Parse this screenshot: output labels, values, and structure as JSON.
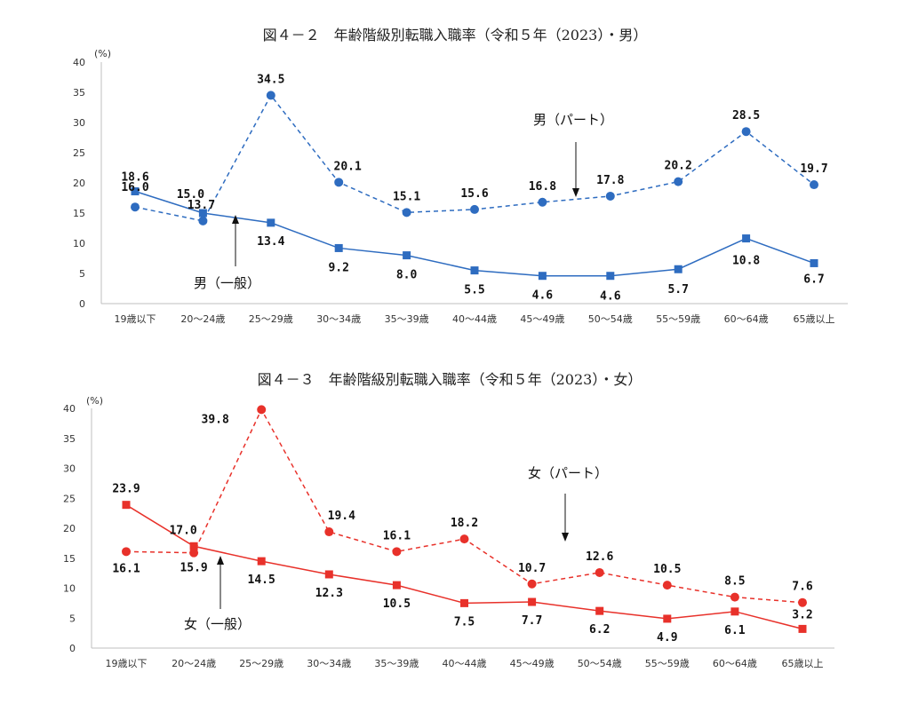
{
  "chart_data": [
    {
      "type": "line",
      "title": "図４－２　年齢階級別転職入職率（令和５年（2023）・男）",
      "ylabel_unit": "(%)",
      "ylim": [
        0,
        40
      ],
      "yticks": [
        0,
        5,
        10,
        15,
        20,
        25,
        30,
        35,
        40
      ],
      "categories": [
        "19歳以下",
        "20～24歳",
        "25～29歳",
        "30～34歳",
        "35～39歳",
        "40～44歳",
        "45～49歳",
        "50～54歳",
        "55～59歳",
        "60～64歳",
        "65歳以上"
      ],
      "color": "#2e6cc0",
      "series": [
        {
          "name": "男（パート）",
          "style": "dashed",
          "marker": "circle",
          "values": [
            16.0,
            13.7,
            34.5,
            20.1,
            15.1,
            15.6,
            16.8,
            17.8,
            20.2,
            28.5,
            19.7
          ],
          "labels": [
            "16.0",
            "13.7",
            "34.5",
            "20.1",
            "15.1",
            "15.6",
            "16.8",
            "17.8",
            "20.2",
            "28.5",
            "19.7"
          ]
        },
        {
          "name": "男（一般）",
          "style": "solid",
          "marker": "square",
          "values": [
            18.6,
            15.0,
            13.4,
            9.2,
            8.0,
            5.5,
            4.6,
            4.6,
            5.7,
            10.8,
            6.7
          ],
          "labels": [
            "18.6",
            "15.0",
            "13.4",
            "9.2",
            "8.0",
            "5.5",
            "4.6",
            "4.6",
            "5.7",
            "10.8",
            "6.7"
          ]
        }
      ],
      "annotations": [
        "男（パート）",
        "男（一般）"
      ]
    },
    {
      "type": "line",
      "title": "図４－３　年齢階級別転職入職率（令和５年（2023）・女）",
      "ylabel_unit": "(%)",
      "ylim": [
        0,
        40
      ],
      "yticks": [
        0,
        5,
        10,
        15,
        20,
        25,
        30,
        35,
        40
      ],
      "categories": [
        "19歳以下",
        "20～24歳",
        "25～29歳",
        "30～34歳",
        "35～39歳",
        "40～44歳",
        "45～49歳",
        "50～54歳",
        "55～59歳",
        "60～64歳",
        "65歳以上"
      ],
      "color": "#e8312a",
      "series": [
        {
          "name": "女（パート）",
          "style": "dashed",
          "marker": "circle",
          "values": [
            16.1,
            15.9,
            39.8,
            19.4,
            16.1,
            18.2,
            10.7,
            12.6,
            10.5,
            8.5,
            7.6
          ],
          "labels": [
            "16.1",
            "15.9",
            "39.8",
            "19.4",
            "16.1",
            "18.2",
            "10.7",
            "12.6",
            "10.5",
            "8.5",
            "7.6"
          ]
        },
        {
          "name": "女（一般）",
          "style": "solid",
          "marker": "square",
          "values": [
            23.9,
            17.0,
            14.5,
            12.3,
            10.5,
            7.5,
            7.7,
            6.2,
            4.9,
            6.1,
            3.2
          ],
          "labels": [
            "23.9",
            "17.0",
            "14.5",
            "12.3",
            "10.5",
            "7.5",
            "7.7",
            "6.2",
            "4.9",
            "6.1",
            "3.2"
          ]
        }
      ],
      "annotations": [
        "女（パート）",
        "女（一般）"
      ]
    }
  ]
}
